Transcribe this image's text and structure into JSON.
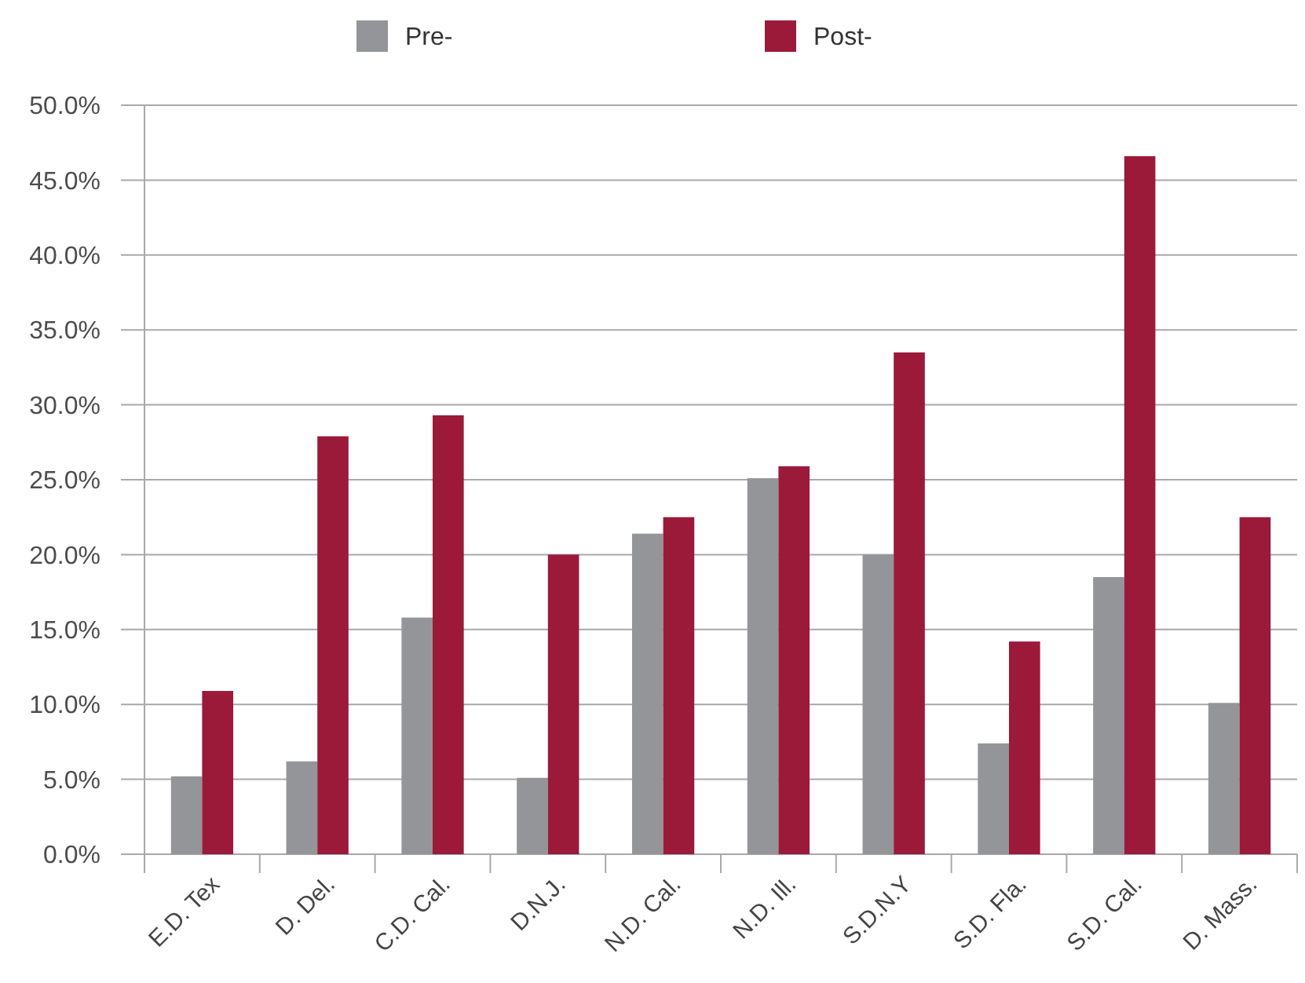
{
  "chart_data": {
    "type": "bar",
    "categories": [
      "E.D. Tex",
      "D. Del.",
      "C.D. Cal.",
      "D.N.J.",
      "N.D. Cal.",
      "N.D. Ill.",
      "S.D.N.Y",
      "S.D. Fla.",
      "S.D. Cal.",
      "D. Mass."
    ],
    "series": [
      {
        "name": "Pre-",
        "color": "#939598",
        "values": [
          5.2,
          6.2,
          15.8,
          5.1,
          21.4,
          25.1,
          20.0,
          7.4,
          18.5,
          10.1
        ]
      },
      {
        "name": "Post-",
        "color": "#9b1a3a",
        "values": [
          10.9,
          27.9,
          29.3,
          20.0,
          22.5,
          25.9,
          33.5,
          14.2,
          46.6,
          22.5
        ]
      }
    ],
    "ylim": [
      0,
      50
    ],
    "yticks": [
      {
        "value": 0,
        "label": "0.0%"
      },
      {
        "value": 5,
        "label": "5.0%"
      },
      {
        "value": 10,
        "label": "10.0%"
      },
      {
        "value": 15,
        "label": "15.0%"
      },
      {
        "value": 20,
        "label": "20.0%"
      },
      {
        "value": 25,
        "label": "25.0%"
      },
      {
        "value": 30,
        "label": "30.0%"
      },
      {
        "value": 35,
        "label": "35.0%"
      },
      {
        "value": 40,
        "label": "40.0%"
      },
      {
        "value": 45,
        "label": "45.0%"
      },
      {
        "value": 50,
        "label": "50.0%"
      }
    ],
    "grid": "y",
    "legend": "top"
  }
}
